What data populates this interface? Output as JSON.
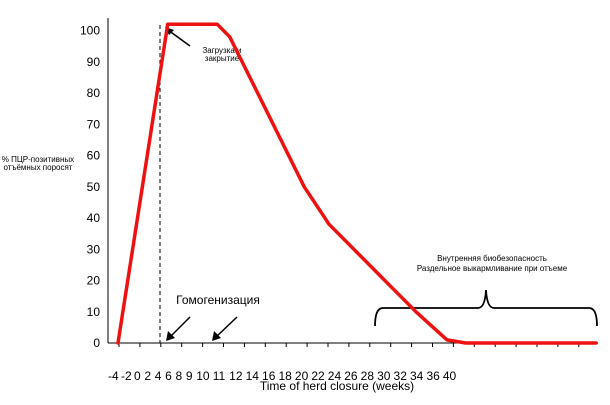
{
  "chart_data": {
    "type": "line",
    "ylabel_lines": [
      "% ПЦР-позитивных",
      "отъёмных поросят"
    ],
    "xlabel": "Time of herd closure (weeks)",
    "x_tick_labels": [
      "-4",
      "-2",
      "0",
      "2",
      "4",
      "6",
      "8",
      "9",
      "10",
      "11",
      "12",
      "14",
      "16",
      "18",
      "20",
      "22",
      "24",
      "26",
      "28",
      "30",
      "32",
      "34",
      "36",
      "40"
    ],
    "y_ticks": [
      0,
      10,
      20,
      30,
      40,
      50,
      60,
      70,
      80,
      90,
      100
    ],
    "ylim": [
      0,
      104
    ],
    "series": [
      {
        "color": "#ee1111",
        "points": [
          {
            "x": -4,
            "y": 0
          },
          {
            "x": 4,
            "y": 102
          },
          {
            "x": 12,
            "y": 102
          },
          {
            "x": 14,
            "y": 98
          },
          {
            "x": 20,
            "y": 74
          },
          {
            "x": 26,
            "y": 50
          },
          {
            "x": 30,
            "y": 38
          },
          {
            "x": 40,
            "y": 18
          },
          {
            "x": 44,
            "y": 10
          },
          {
            "x": 49,
            "y": 1
          },
          {
            "x": 52,
            "y": 0
          },
          {
            "x": 73,
            "y": 0
          }
        ]
      }
    ],
    "annotations": {
      "loading_closure": [
        "Загрузка и",
        "закрытие"
      ],
      "homogenization": "Гомогенизация",
      "internal_biosecurity": [
        "Внутренняя биобезопасность",
        "Раздельное выкармливание при отъеме"
      ]
    }
  }
}
